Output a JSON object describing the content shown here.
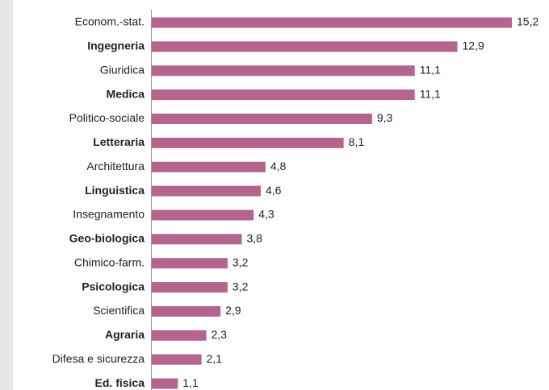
{
  "chart_data": {
    "type": "bar",
    "orientation": "horizontal",
    "categories": [
      "Econom.-stat.",
      "Ingegneria",
      "Giuridica",
      "Medica",
      "Politico-sociale",
      "Letteraria",
      "Architettura",
      "Linguistica",
      "Insegnamento",
      "Geo-biologica",
      "Chimico-farm.",
      "Psicologica",
      "Scientifica",
      "Agraria",
      "Difesa e sicurezza",
      "Ed. fisica"
    ],
    "values": [
      15.2,
      12.9,
      11.1,
      11.1,
      9.3,
      8.1,
      4.8,
      4.6,
      4.3,
      3.8,
      3.2,
      3.2,
      2.9,
      2.3,
      2.1,
      1.1
    ],
    "value_labels": [
      "15,2",
      "12,9",
      "11,1",
      "11,1",
      "9,3",
      "8,1",
      "4,8",
      "4,6",
      "4,3",
      "3,8",
      "3,2",
      "3,2",
      "2,9",
      "2,3",
      "2,1",
      "1,1"
    ],
    "color": "#b5648f"
  }
}
